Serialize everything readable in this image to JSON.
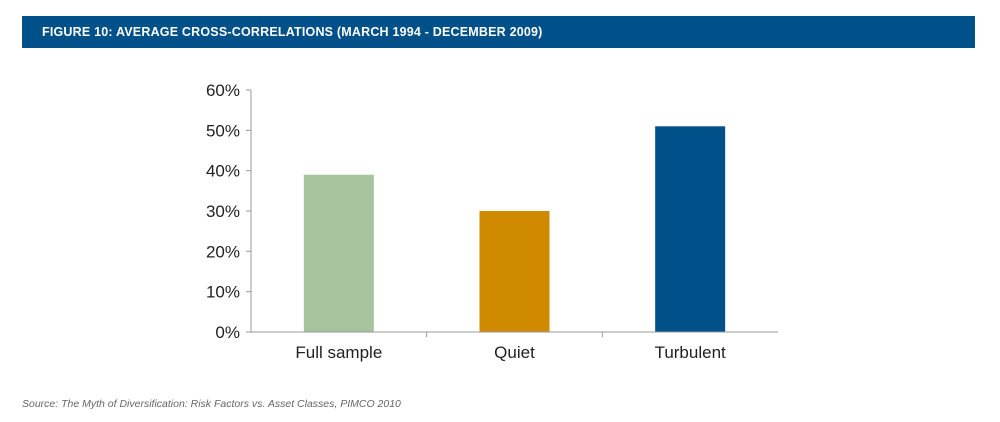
{
  "figure": {
    "title": "FIGURE 10: AVERAGE CROSS-CORRELATIONS (MARCH 1994 - DECEMBER 2009)",
    "source": "Source: The Myth of Diversification: Risk Factors vs. Asset Classes, PIMCO 2010"
  },
  "chart_data": {
    "type": "bar",
    "categories": [
      "Full sample",
      "Quiet",
      "Turbulent"
    ],
    "values": [
      39,
      30,
      51
    ],
    "colors": [
      "#a8c49e",
      "#d08a00",
      "#00508a"
    ],
    "yticks": [
      "0%",
      "10%",
      "20%",
      "30%",
      "40%",
      "50%",
      "60%"
    ],
    "ylim": [
      0,
      60
    ],
    "grid": false,
    "legend": "none"
  }
}
